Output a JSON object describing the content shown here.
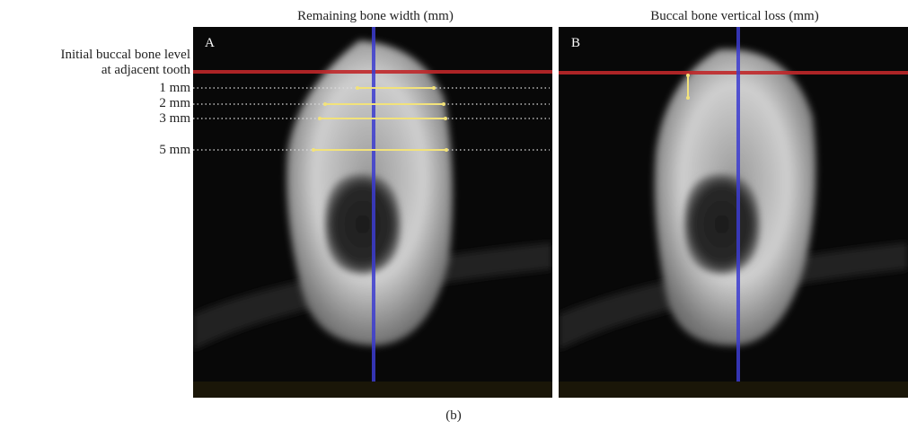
{
  "figure": {
    "panels": [
      {
        "letter": "A",
        "title": "Remaining bone width (mm)"
      },
      {
        "letter": "B",
        "title": "Buccal bone vertical loss (mm)"
      }
    ],
    "reference_label": [
      "Initial buccal bone level",
      "at adjacent tooth"
    ],
    "levels": [
      "1 mm",
      "2 mm",
      "3 mm",
      "5 mm"
    ],
    "caption": "(b)"
  }
}
